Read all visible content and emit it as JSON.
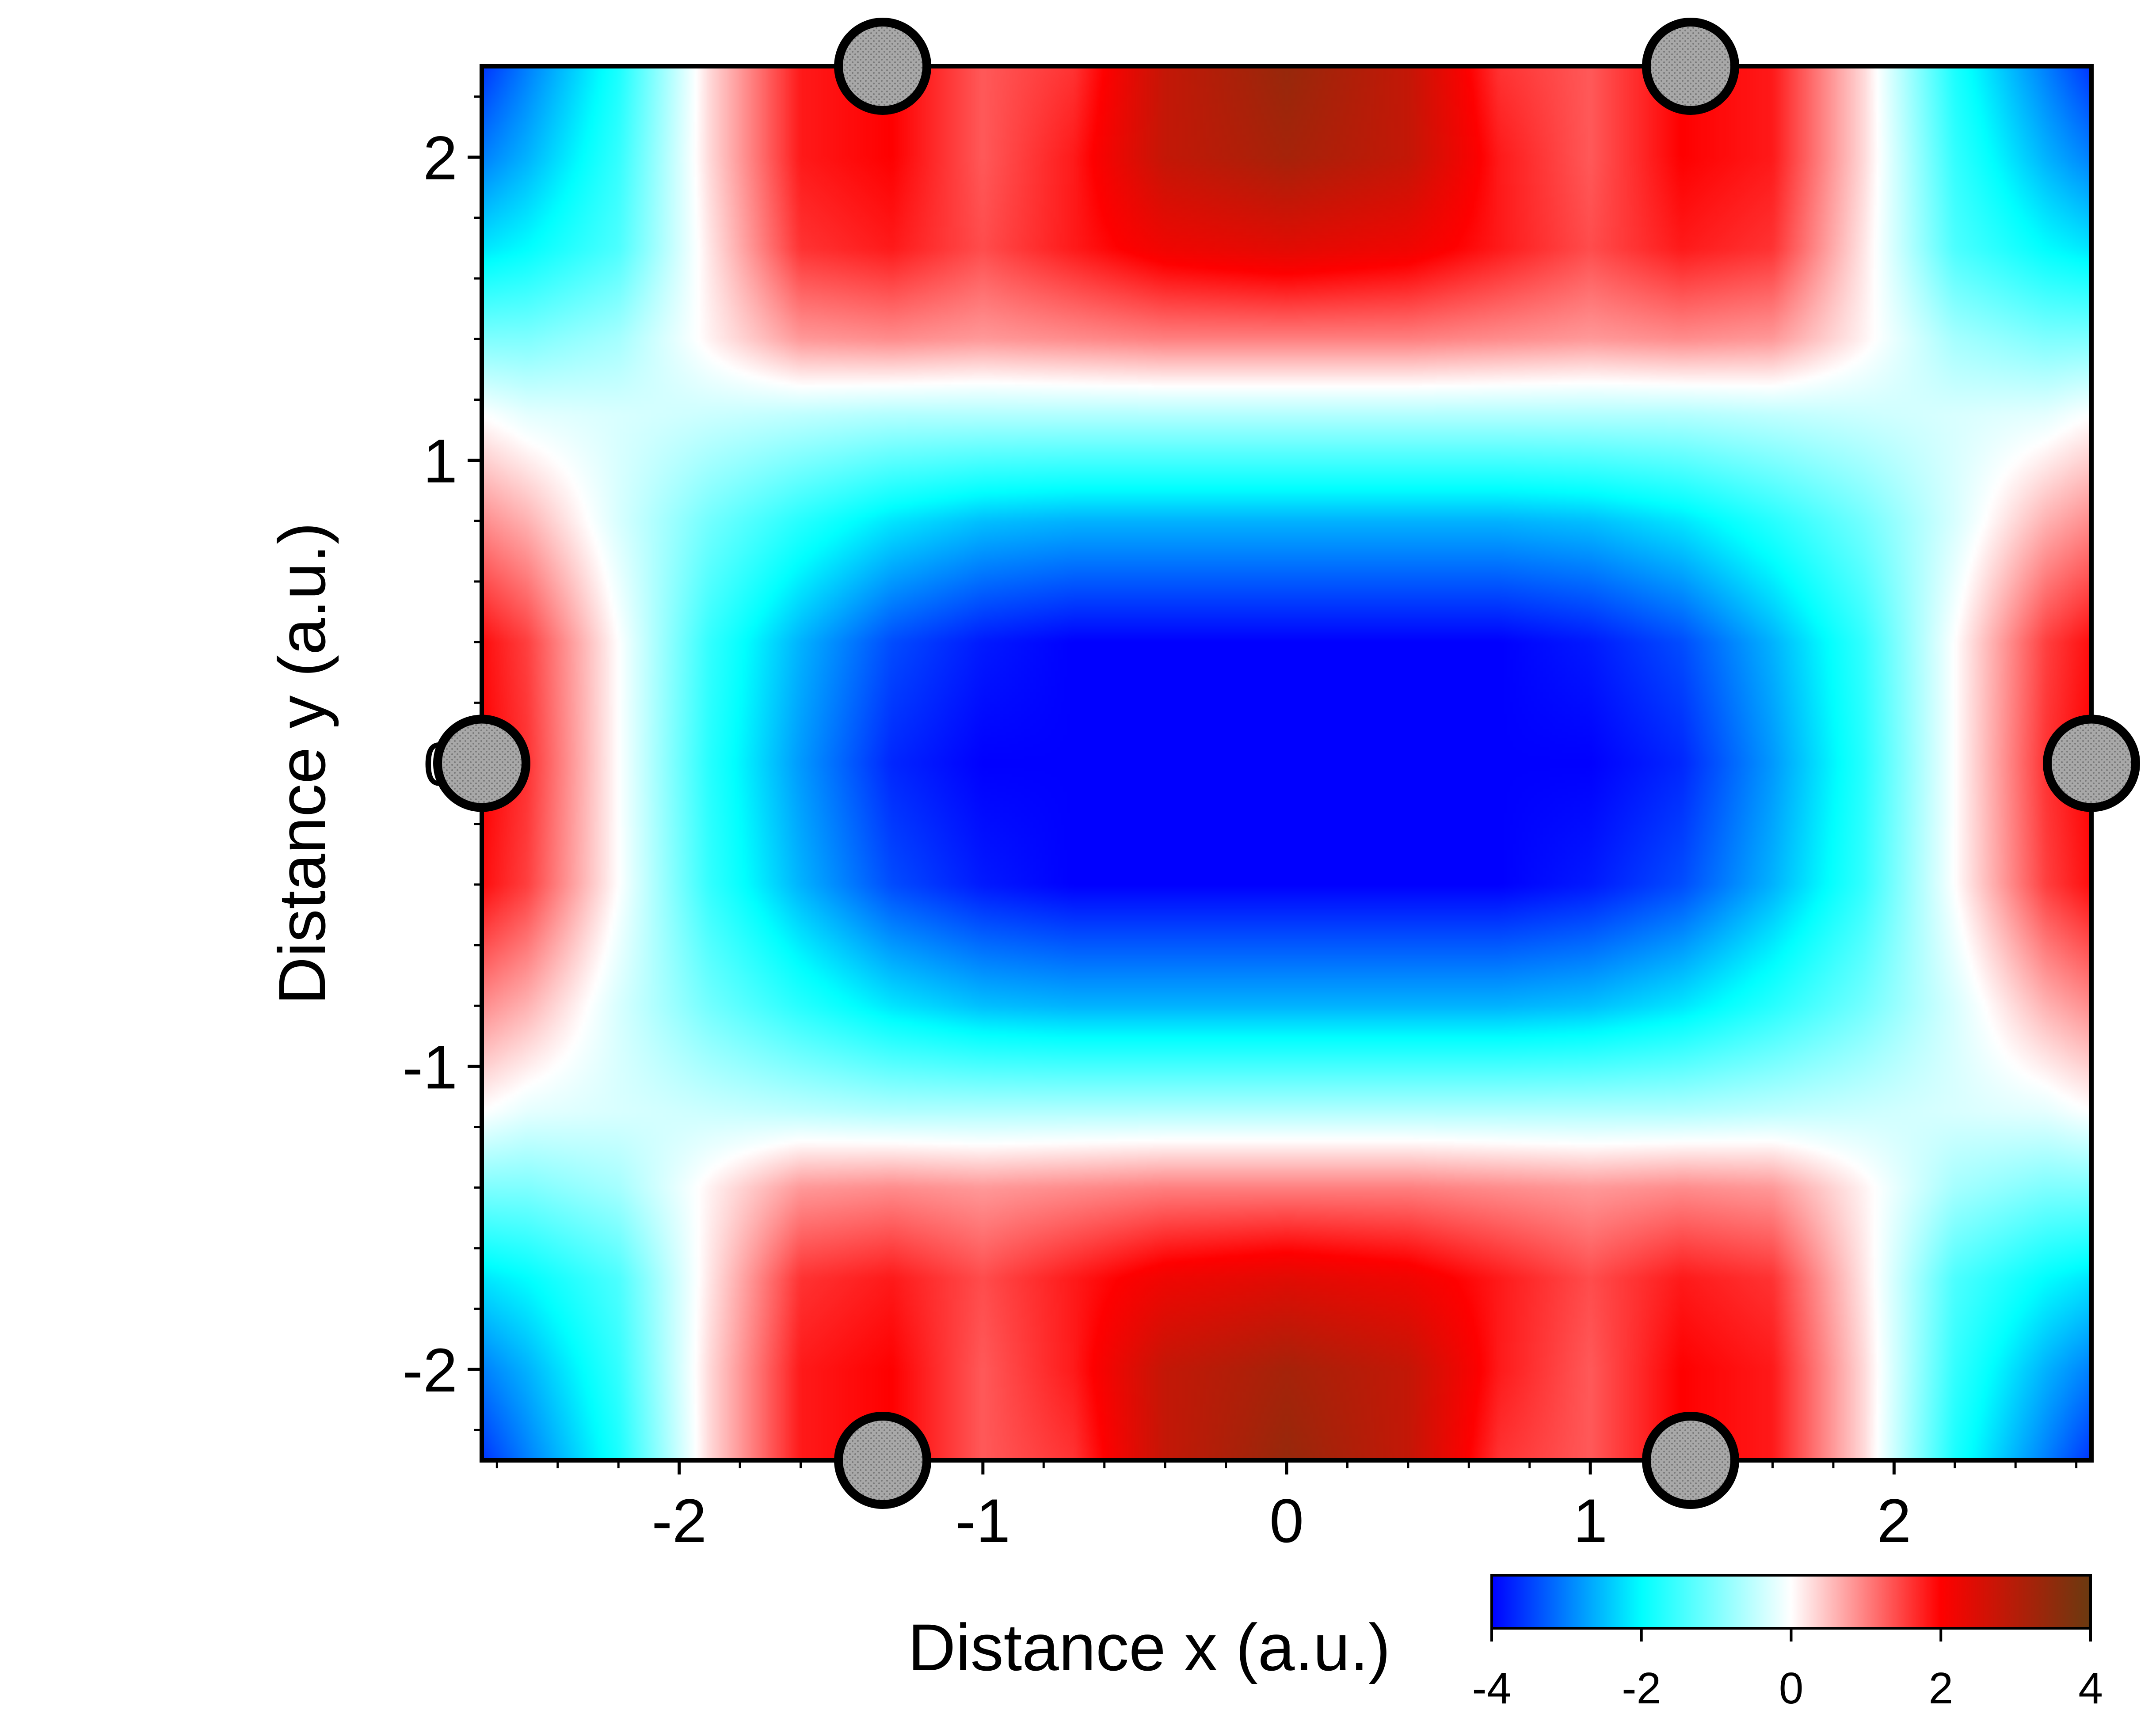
{
  "chart_data": {
    "type": "heatmap",
    "xlabel": "Distance x (a.u.)",
    "ylabel": "Distance y (a.u.)",
    "xlim": [
      -2.65,
      2.65
    ],
    "ylim": [
      -2.3,
      2.3
    ],
    "x_ticks": [
      {
        "value": -2,
        "label": "-2"
      },
      {
        "value": -1,
        "label": "-1"
      },
      {
        "value": 0,
        "label": "0"
      },
      {
        "value": 1,
        "label": "1"
      },
      {
        "value": 2,
        "label": "2"
      }
    ],
    "y_ticks": [
      {
        "value": 2,
        "label": "2"
      },
      {
        "value": 1,
        "label": "1"
      },
      {
        "value": 0,
        "label": "0"
      },
      {
        "value": -1,
        "label": "-1"
      },
      {
        "value": -2,
        "label": "-2"
      }
    ],
    "colorbar": {
      "range": [
        -4,
        4
      ],
      "ticks": [
        {
          "value": -4,
          "label": "-4"
        },
        {
          "value": -2,
          "label": "-2"
        },
        {
          "value": 0,
          "label": "0"
        },
        {
          "value": 2,
          "label": "2"
        },
        {
          "value": 4,
          "label": "4"
        }
      ],
      "colormap": [
        {
          "value": -4,
          "color": "#0000ff"
        },
        {
          "value": -2,
          "color": "#00ffff"
        },
        {
          "value": 0,
          "color": "#ffffff"
        },
        {
          "value": 2,
          "color": "#ff0000"
        },
        {
          "value": 4,
          "color": "#6a3a10"
        }
      ]
    },
    "field": {
      "min": -4,
      "max": 4,
      "grid_x": [
        -2.65,
        -2.5,
        -2.2,
        -1.9,
        -1.6,
        -1.3,
        -1.0,
        -0.7,
        -0.4,
        0.0,
        0.4,
        0.7,
        1.0,
        1.3,
        1.6,
        1.9,
        2.2,
        2.5,
        2.65
      ],
      "grid_y": [
        2.3,
        2.0,
        1.7,
        1.4,
        1.15,
        0.8,
        0.4,
        0.0,
        -0.4,
        -0.8,
        -1.15,
        -1.4,
        -1.7,
        -2.0,
        -2.3
      ],
      "values": [
        [
          -3.6,
          -3.0,
          -1.8,
          0.3,
          1.8,
          2.0,
          1.3,
          1.6,
          2.8,
          3.4,
          2.8,
          1.6,
          1.3,
          2.0,
          1.8,
          0.3,
          -1.8,
          -3.0,
          -3.6
        ],
        [
          -3.0,
          -2.6,
          -1.6,
          0.3,
          1.8,
          2.0,
          1.3,
          1.8,
          2.8,
          3.2,
          2.8,
          1.8,
          1.3,
          2.0,
          1.8,
          0.3,
          -1.6,
          -2.6,
          -3.0
        ],
        [
          -2.2,
          -2.0,
          -1.4,
          0.2,
          1.6,
          1.8,
          1.4,
          1.8,
          2.2,
          2.4,
          2.2,
          1.8,
          1.4,
          1.8,
          1.6,
          0.2,
          -1.4,
          -2.0,
          -2.2
        ],
        [
          -1.0,
          -1.0,
          -0.7,
          0.1,
          0.8,
          0.9,
          0.8,
          0.9,
          1.0,
          1.0,
          1.0,
          0.9,
          0.8,
          0.9,
          0.8,
          0.1,
          -0.7,
          -1.0,
          -1.0
        ],
        [
          0.0,
          -0.2,
          -0.3,
          -0.4,
          -0.5,
          -0.6,
          -0.6,
          -0.6,
          -0.6,
          -0.6,
          -0.6,
          -0.6,
          -0.6,
          -0.6,
          -0.5,
          -0.4,
          -0.3,
          -0.2,
          0.0
        ],
        [
          0.9,
          0.6,
          -0.3,
          -1.1,
          -1.7,
          -2.2,
          -2.5,
          -2.6,
          -2.6,
          -2.6,
          -2.6,
          -2.6,
          -2.5,
          -2.2,
          -1.7,
          -1.1,
          -0.3,
          0.6,
          0.9
        ],
        [
          1.9,
          1.5,
          0.0,
          -1.6,
          -2.6,
          -3.4,
          -3.8,
          -4.0,
          -4.0,
          -4.0,
          -4.0,
          -4.0,
          -3.8,
          -3.4,
          -2.6,
          -1.6,
          0.0,
          1.5,
          1.9
        ],
        [
          2.0,
          1.6,
          0.0,
          -1.7,
          -2.8,
          -3.7,
          -4.0,
          -4.0,
          -4.0,
          -4.0,
          -4.0,
          -4.0,
          -4.0,
          -3.7,
          -2.8,
          -1.7,
          0.0,
          1.6,
          2.0
        ],
        [
          1.9,
          1.5,
          0.0,
          -1.6,
          -2.6,
          -3.4,
          -3.8,
          -4.0,
          -4.0,
          -4.0,
          -4.0,
          -4.0,
          -3.8,
          -3.4,
          -2.6,
          -1.6,
          0.0,
          1.5,
          1.9
        ],
        [
          0.9,
          0.6,
          -0.3,
          -1.1,
          -1.7,
          -2.2,
          -2.5,
          -2.6,
          -2.6,
          -2.6,
          -2.6,
          -2.6,
          -2.5,
          -2.2,
          -1.7,
          -1.1,
          -0.3,
          0.6,
          0.9
        ],
        [
          0.0,
          -0.2,
          -0.3,
          -0.4,
          -0.5,
          -0.6,
          -0.6,
          -0.6,
          -0.6,
          -0.6,
          -0.6,
          -0.6,
          -0.6,
          -0.6,
          -0.5,
          -0.4,
          -0.3,
          -0.2,
          0.0
        ],
        [
          -1.0,
          -1.0,
          -0.7,
          0.1,
          0.8,
          0.9,
          0.8,
          0.9,
          1.0,
          1.0,
          1.0,
          0.9,
          0.8,
          0.9,
          0.8,
          0.1,
          -0.7,
          -1.0,
          -1.0
        ],
        [
          -2.2,
          -2.0,
          -1.4,
          0.2,
          1.6,
          1.8,
          1.4,
          1.8,
          2.2,
          2.4,
          2.2,
          1.8,
          1.4,
          1.8,
          1.6,
          0.2,
          -1.4,
          -2.0,
          -2.2
        ],
        [
          -3.0,
          -2.6,
          -1.6,
          0.3,
          1.8,
          2.0,
          1.3,
          1.8,
          2.8,
          3.2,
          2.8,
          1.8,
          1.3,
          2.0,
          1.8,
          0.3,
          -1.6,
          -2.6,
          -3.0
        ],
        [
          -3.6,
          -3.0,
          -1.8,
          0.3,
          1.8,
          2.0,
          1.3,
          1.6,
          2.8,
          3.4,
          2.8,
          1.6,
          1.3,
          2.0,
          1.8,
          0.3,
          -1.8,
          -3.0,
          -3.6
        ]
      ]
    },
    "markers": [
      {
        "x": -1.33,
        "y": 2.3
      },
      {
        "x": 1.33,
        "y": 2.3
      },
      {
        "x": -2.65,
        "y": 0.0
      },
      {
        "x": 2.65,
        "y": 0.0
      },
      {
        "x": -1.33,
        "y": -2.3
      },
      {
        "x": 1.33,
        "y": -2.3
      }
    ],
    "marker_style": {
      "fill": "#a8a8a8",
      "stroke": "#000000"
    },
    "grid": false
  }
}
